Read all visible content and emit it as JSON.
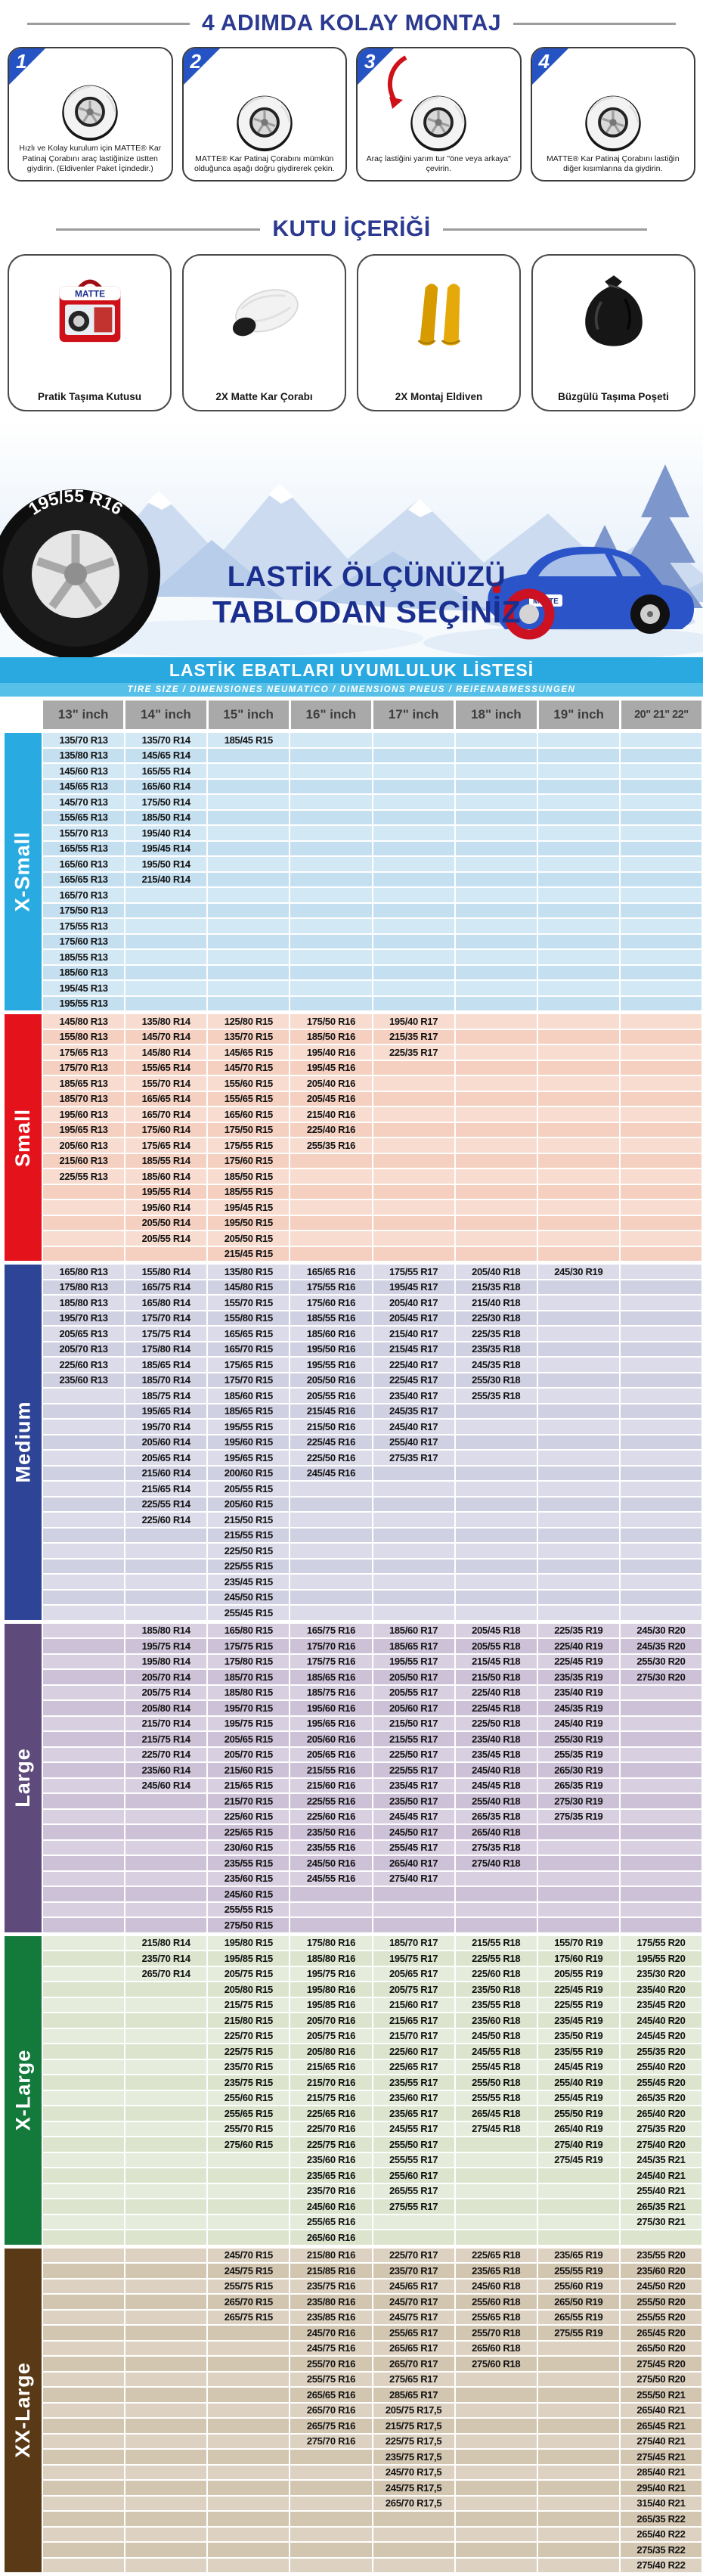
{
  "steps_section": {
    "title": "4 ADIMDA KOLAY MONTAJ",
    "steps": [
      {
        "number": "1",
        "caption": "Hızlı ve Kolay kurulum için MATTE® Kar Patinaj Çorabını araç lastiğinize üstten giydirin. (Eldivenler Paket İçindedir.)"
      },
      {
        "number": "2",
        "caption": "MATTE® Kar Patinaj Çorabını mümkün olduğunca aşağı doğru giydirerek çekin."
      },
      {
        "number": "3",
        "caption": "Araç lastiğini yarım tur \"öne veya arkaya\" çevirin."
      },
      {
        "number": "4",
        "caption": "MATTE® Kar Patinaj Çorabını lastiğin diğer kısımlarına da giydirin."
      }
    ]
  },
  "box_section": {
    "title": "KUTU İÇERİĞİ",
    "items": [
      {
        "icon": "carry-box",
        "caption": "Pratik Taşıma Kutusu"
      },
      {
        "icon": "snow-sock",
        "caption": "2X Matte Kar Çorabı"
      },
      {
        "icon": "mounting-gloves",
        "caption": "2X Montaj Eldiven"
      },
      {
        "icon": "drawstring-bag",
        "caption": "Büzgülü Taşıma Poşeti"
      }
    ]
  },
  "banner": {
    "tire_label": "195/55 R16",
    "heading_line1": "LASTİK ÖLÇÜNÜZÜ",
    "heading_line2": "TABLODAN SEÇİNİZ",
    "car_brand": "MATTE"
  },
  "table": {
    "title": "LASTİK EBATLARI UYUMLULUK LİSTESİ",
    "subtitle": "TIRE SIZE  /  DIMENSIONES NEUMATICO  /  DIMENSIONS PNEUS  /  REIFENABMESSUNGEN",
    "columns": [
      "13\" inch",
      "14\" inch",
      "15\" inch",
      "16\" inch",
      "17\" inch",
      "18\" inch",
      "19\" inch",
      "20\" 21\" 22\""
    ],
    "sections": [
      {
        "name": "X-Small",
        "label_bg": "#29abe2",
        "row_bg": "#d2e8f5",
        "row_bg_alt": "#c4e0f0",
        "columns": [
          [
            "135/70 R13",
            "135/80 R13",
            "145/60 R13",
            "145/65 R13",
            "145/70 R13",
            "155/65 R13",
            "155/70 R13",
            "165/55 R13",
            "165/60 R13",
            "165/65 R13",
            "165/70 R13",
            "175/50 R13",
            "175/55 R13",
            "175/60 R13",
            "185/55 R13",
            "185/60 R13",
            "195/45 R13",
            "195/55 R13"
          ],
          [
            "135/70 R14",
            "145/65 R14",
            "165/55 R14",
            "165/60 R14",
            "175/50 R14",
            "185/50 R14",
            "195/40 R14",
            "195/45 R14",
            "195/50 R14",
            "215/40 R14"
          ],
          [
            "185/45 R15"
          ],
          [],
          [],
          [],
          [],
          []
        ]
      },
      {
        "name": "Small",
        "label_bg": "#e4121b",
        "row_bg": "#f8dcd0",
        "row_bg_alt": "#f5d0c0",
        "columns": [
          [
            "145/80 R13",
            "155/80 R13",
            "175/65 R13",
            "175/70 R13",
            "185/65 R13",
            "185/70 R13",
            "195/60 R13",
            "195/65 R13",
            "205/60 R13",
            "215/60 R13",
            "225/55 R13"
          ],
          [
            "135/80 R14",
            "145/70 R14",
            "145/80 R14",
            "155/65 R14",
            "155/70 R14",
            "165/65 R14",
            "165/70 R14",
            "175/60 R14",
            "175/65 R14",
            "185/55 R14",
            "185/60 R14",
            "195/55 R14",
            "195/60 R14",
            "205/50 R14",
            "205/55 R14"
          ],
          [
            "125/80 R15",
            "135/70 R15",
            "145/65 R15",
            "145/70 R15",
            "155/60 R15",
            "155/65 R15",
            "165/60 R15",
            "175/50 R15",
            "175/55 R15",
            "175/60 R15",
            "185/50 R15",
            "185/55 R15",
            "195/45 R15",
            "195/50 R15",
            "205/50 R15",
            "215/45 R15"
          ],
          [
            "175/50 R16",
            "185/50 R16",
            "195/40 R16",
            "195/45 R16",
            "205/40 R16",
            "205/45 R16",
            "215/40 R16",
            "225/40 R16",
            "255/35 R16"
          ],
          [
            "195/40 R17",
            "215/35 R17",
            "225/35 R17"
          ],
          [],
          [],
          []
        ]
      },
      {
        "name": "Medium",
        "label_bg": "#2e4496",
        "row_bg": "#dbdbea",
        "row_bg_alt": "#d0d0e3",
        "columns": [
          [
            "165/80 R13",
            "175/80 R13",
            "185/80 R13",
            "195/70 R13",
            "205/65 R13",
            "205/70 R13",
            "225/60 R13",
            "235/60 R13"
          ],
          [
            "155/80 R14",
            "165/75 R14",
            "165/80 R14",
            "175/70 R14",
            "175/75 R14",
            "175/80 R14",
            "185/65 R14",
            "185/70 R14",
            "185/75 R14",
            "195/65 R14",
            "195/70 R14",
            "205/60 R14",
            "205/65 R14",
            "215/60 R14",
            "215/65 R14",
            "225/55 R14",
            "225/60 R14"
          ],
          [
            "135/80 R15",
            "145/80 R15",
            "155/70 R15",
            "155/80 R15",
            "165/65 R15",
            "165/70 R15",
            "175/65 R15",
            "175/70 R15",
            "185/60 R15",
            "185/65 R15",
            "195/55 R15",
            "195/60 R15",
            "195/65 R15",
            "200/60 R15",
            "205/55 R15",
            "205/60 R15",
            "215/50 R15",
            "215/55 R15",
            "225/50 R15",
            "225/55 R15",
            "235/45 R15",
            "245/50 R15",
            "255/45 R15"
          ],
          [
            "165/65 R16",
            "175/55 R16",
            "175/60 R16",
            "185/55 R16",
            "185/60 R16",
            "195/50 R16",
            "195/55 R16",
            "205/50 R16",
            "205/55 R16",
            "215/45 R16",
            "215/50 R16",
            "225/45 R16",
            "225/50 R16",
            "245/45 R16"
          ],
          [
            "175/55 R17",
            "195/45 R17",
            "205/40 R17",
            "205/45 R17",
            "215/40 R17",
            "215/45 R17",
            "225/40 R17",
            "225/45 R17",
            "235/40 R17",
            "245/35 R17",
            "245/40 R17",
            "255/40 R17",
            "275/35 R17"
          ],
          [
            "205/40 R18",
            "215/35 R18",
            "215/40 R18",
            "225/30 R18",
            "225/35 R18",
            "235/35 R18",
            "245/35 R18",
            "255/30 R18",
            "255/35 R18"
          ],
          [
            "245/30 R19"
          ],
          []
        ]
      },
      {
        "name": "Large",
        "label_bg": "#5e4b7c",
        "row_bg": "#d8cfe1",
        "row_bg_alt": "#ccc1d6",
        "columns": [
          [],
          [
            "185/80 R14",
            "195/75 R14",
            "195/80 R14",
            "205/70 R14",
            "205/75 R14",
            "205/80 R14",
            "215/70 R14",
            "215/75 R14",
            "225/70 R14",
            "235/60 R14",
            "245/60 R14"
          ],
          [
            "165/80 R15",
            "175/75 R15",
            "175/80 R15",
            "185/70 R15",
            "185/80 R15",
            "195/70 R15",
            "195/75 R15",
            "205/65 R15",
            "205/70 R15",
            "215/60 R15",
            "215/65 R15",
            "215/70 R15",
            "225/60 R15",
            "225/65 R15",
            "230/60 R15",
            "235/55 R15",
            "235/60 R15",
            "245/60 R15",
            "255/55 R15",
            "275/50 R15"
          ],
          [
            "165/75 R16",
            "175/70 R16",
            "175/75 R16",
            "185/65 R16",
            "185/75 R16",
            "195/60 R16",
            "195/65 R16",
            "205/60 R16",
            "205/65 R16",
            "215/55 R16",
            "215/60 R16",
            "225/55 R16",
            "225/60 R16",
            "235/50 R16",
            "235/55 R16",
            "245/50 R16",
            "245/55 R16"
          ],
          [
            "185/60 R17",
            "185/65 R17",
            "195/55 R17",
            "205/50 R17",
            "205/55 R17",
            "205/60 R17",
            "215/50 R17",
            "215/55 R17",
            "225/50 R17",
            "225/55 R17",
            "235/45 R17",
            "235/50 R17",
            "245/45 R17",
            "245/50 R17",
            "255/45 R17",
            "265/40 R17",
            "275/40 R17"
          ],
          [
            "205/45 R18",
            "205/55 R18",
            "215/45 R18",
            "215/50 R18",
            "225/40 R18",
            "225/45 R18",
            "225/50 R18",
            "235/40 R18",
            "235/45 R18",
            "245/40 R18",
            "245/45 R18",
            "255/40 R18",
            "265/35 R18",
            "265/40 R18",
            "275/35 R18",
            "275/40 R18"
          ],
          [
            "225/35 R19",
            "225/40 R19",
            "225/45 R19",
            "235/35 R19",
            "235/40 R19",
            "245/35 R19",
            "245/40 R19",
            "255/30 R19",
            "255/35 R19",
            "265/30 R19",
            "265/35 R19",
            "275/30 R19",
            "275/35 R19"
          ],
          [
            "245/30 R20",
            "245/35 R20",
            "255/30 R20",
            "275/30 R20"
          ]
        ]
      },
      {
        "name": "X-Large",
        "label_bg": "#137a3b",
        "row_bg": "#e6ecdb",
        "row_bg_alt": "#dce4cd",
        "columns": [
          [],
          [
            "215/80 R14",
            "235/70 R14",
            "265/70 R14"
          ],
          [
            "195/80 R15",
            "195/85 R15",
            "205/75 R15",
            "205/80 R15",
            "215/75 R15",
            "215/80 R15",
            "225/70 R15",
            "225/75 R15",
            "235/70 R15",
            "235/75 R15",
            "255/60 R15",
            "255/65 R15",
            "255/70 R15",
            "275/60 R15"
          ],
          [
            "175/80 R16",
            "185/80 R16",
            "195/75 R16",
            "195/80 R16",
            "195/85 R16",
            "205/70 R16",
            "205/75 R16",
            "205/80 R16",
            "215/65 R16",
            "215/70 R16",
            "215/75 R16",
            "225/65 R16",
            "225/70 R16",
            "225/75 R16",
            "235/60 R16",
            "235/65 R16",
            "235/70 R16",
            "245/60 R16",
            "255/65 R16",
            "265/60 R16"
          ],
          [
            "185/70 R17",
            "195/75 R17",
            "205/65 R17",
            "205/75 R17",
            "215/60 R17",
            "215/65 R17",
            "215/70 R17",
            "225/60 R17",
            "225/65 R17",
            "235/55 R17",
            "235/60 R17",
            "235/65 R17",
            "245/55 R17",
            "255/50 R17",
            "255/55 R17",
            "255/60 R17",
            "265/55 R17",
            "275/55 R17"
          ],
          [
            "215/55 R18",
            "225/55 R18",
            "225/60 R18",
            "235/50 R18",
            "235/55 R18",
            "235/60 R18",
            "245/50 R18",
            "245/55 R18",
            "255/45 R18",
            "255/50 R18",
            "255/55 R18",
            "265/45 R18",
            "275/45 R18"
          ],
          [
            "155/70 R19",
            "175/60 R19",
            "205/55 R19",
            "225/45 R19",
            "225/55 R19",
            "235/45 R19",
            "235/50 R19",
            "235/55 R19",
            "245/45 R19",
            "255/40 R19",
            "255/45 R19",
            "255/50 R19",
            "265/40 R19",
            "275/40 R19",
            "275/45 R19"
          ],
          [
            "175/55 R20",
            "195/55 R20",
            "235/30 R20",
            "235/40 R20",
            "235/45 R20",
            "245/40 R20",
            "245/45 R20",
            "255/35 R20",
            "255/40 R20",
            "255/45 R20",
            "265/35 R20",
            "265/40 R20",
            "275/35 R20",
            "275/40 R20",
            "245/35 R21",
            "245/40 R21",
            "255/40 R21",
            "265/35 R21",
            "275/30 R21"
          ]
        ]
      },
      {
        "name": "XX-Large",
        "label_bg": "#5a3a16",
        "row_bg": "#ddd2c1",
        "row_bg_alt": "#d3c6b1",
        "columns": [
          [],
          [],
          [
            "245/70 R15",
            "245/75 R15",
            "255/75 R15",
            "265/70 R15",
            "265/75 R15"
          ],
          [
            "215/80 R16",
            "215/85 R16",
            "235/75 R16",
            "235/80 R16",
            "235/85 R16",
            "245/70 R16",
            "245/75 R16",
            "255/70 R16",
            "255/75 R16",
            "265/65 R16",
            "265/70 R16",
            "265/75 R16",
            "275/70 R16"
          ],
          [
            "225/70 R17",
            "235/70 R17",
            "245/65 R17",
            "245/70 R17",
            "245/75 R17",
            "255/65 R17",
            "265/65 R17",
            "265/70 R17",
            "275/65 R17",
            "285/65 R17",
            "205/75 R17,5",
            "215/75 R17,5",
            "225/75 R17,5",
            "235/75 R17,5",
            "245/70 R17,5",
            "245/75 R17,5",
            "265/70 R17,5"
          ],
          [
            "225/65 R18",
            "235/65 R18",
            "245/60 R18",
            "255/60 R18",
            "255/65 R18",
            "255/70 R18",
            "265/60 R18",
            "275/60 R18"
          ],
          [
            "235/65 R19",
            "255/55 R19",
            "255/60 R19",
            "265/50 R19",
            "265/55 R19",
            "275/55 R19"
          ],
          [
            "235/55 R20",
            "235/60 R20",
            "245/50 R20",
            "255/50 R20",
            "255/55 R20",
            "265/45 R20",
            "265/50 R20",
            "275/45 R20",
            "275/50 R20",
            "255/50 R21",
            "265/40 R21",
            "265/45 R21",
            "275/40 R21",
            "275/45 R21",
            "285/40 R21",
            "295/40 R21",
            "315/40 R21",
            "265/35 R22",
            "265/40 R22",
            "275/35 R22",
            "275/40 R22"
          ]
        ]
      }
    ]
  }
}
